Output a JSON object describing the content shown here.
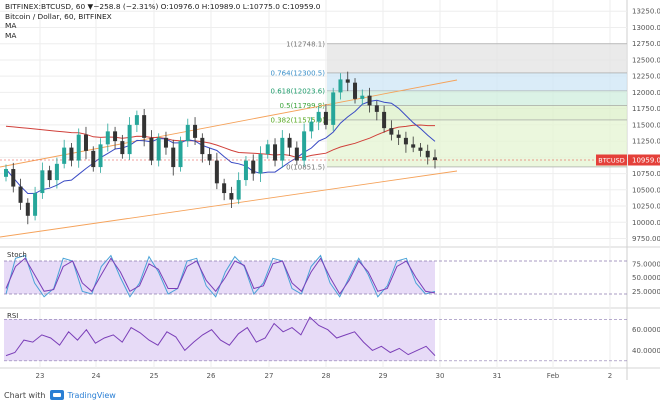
{
  "header": {
    "title": "BITFINEX:BTCUSD, 60",
    "quote": "▼−258.8 (−2.31%) O:10976.0 H:10989.0 L:10775.0 C:10959.0",
    "line2": "Bitcoin / Dollar, 60, BITFINEX",
    "ma1": "MA",
    "ma2": "MA"
  },
  "footer": {
    "prefix": "Chart with",
    "brand": "TradingView",
    "logo_icon": "tradingview-logo-icon"
  },
  "colors": {
    "up": "#26a69a",
    "down": "#333333",
    "ma_fast": "#3a4bc4",
    "ma_slow": "#d0403a",
    "channel": "#f5a25a",
    "badge": "#e4403a",
    "stoch_fill": "#e7dbf7",
    "osc_line": "#7b3fb8",
    "stoch_d": "#4aa3d8"
  },
  "chart_data": [
    {
      "type": "candlestick",
      "title": "Bitcoin / Dollar, 60, BITFINEX",
      "x_ticks": [
        "23",
        "24",
        "25",
        "26",
        "27",
        "28",
        "29",
        "30",
        "31",
        "Feb",
        "2"
      ],
      "y_ticks": [
        9750,
        10000,
        10250,
        10500,
        10750,
        11000,
        11250,
        11500,
        11750,
        12000,
        12250,
        12500,
        12750,
        13000,
        13250
      ],
      "ylim": [
        9650,
        13300
      ],
      "price_badge": {
        "label": "BTCUSD",
        "value": 10959.0
      },
      "close_series": [
        10820,
        10550,
        10300,
        10100,
        10450,
        10800,
        10650,
        10900,
        11150,
        10950,
        11350,
        11100,
        10850,
        11200,
        11400,
        11250,
        11050,
        11500,
        11650,
        11300,
        10950,
        11300,
        11150,
        10850,
        11250,
        11500,
        11300,
        11050,
        10950,
        10600,
        10450,
        10350,
        10650,
        10950,
        10750,
        11050,
        11200,
        10950,
        11300,
        11150,
        10950,
        11400,
        11550,
        11700,
        11500,
        12000,
        12200,
        12150,
        11900,
        11950,
        11800,
        11700,
        11450,
        11350,
        11300,
        11200,
        11150,
        11100,
        11000,
        10959
      ],
      "fibonacci": [
        {
          "label": "1(12748.1)",
          "level": 12748.1
        },
        {
          "label": "0.764(12300.5)",
          "level": 12300.5
        },
        {
          "label": "0.618(12023.6)",
          "level": 12023.6
        },
        {
          "label": "0.5(11799.8)",
          "level": 11799.8
        },
        {
          "label": "0.382(11575.9)",
          "level": 11575.9
        },
        {
          "label": "0(10851.5)",
          "level": 10851.5
        }
      ]
    },
    {
      "type": "line",
      "title": "Stoch",
      "y_ticks": [
        "75.0000",
        "50.0000",
        "25.0000"
      ],
      "ylim": [
        0,
        100
      ],
      "band": [
        20,
        80
      ],
      "k_values": [
        20,
        85,
        90,
        40,
        15,
        30,
        85,
        80,
        25,
        20,
        70,
        90,
        50,
        15,
        40,
        88,
        60,
        20,
        30,
        80,
        85,
        35,
        15,
        60,
        88,
        70,
        20,
        40,
        85,
        80,
        30,
        20,
        70,
        90,
        40,
        15,
        50,
        85,
        55,
        15,
        35,
        80,
        85,
        40,
        20,
        25
      ],
      "d_values": [
        30,
        70,
        85,
        55,
        25,
        28,
        70,
        80,
        40,
        25,
        55,
        85,
        60,
        25,
        35,
        75,
        65,
        30,
        30,
        70,
        80,
        45,
        25,
        50,
        80,
        72,
        30,
        35,
        75,
        80,
        40,
        25,
        60,
        85,
        50,
        20,
        45,
        80,
        60,
        25,
        30,
        70,
        80,
        50,
        25,
        22
      ]
    },
    {
      "type": "line",
      "title": "RSI",
      "y_ticks": [
        "60.0000",
        "40.0000"
      ],
      "ylim": [
        25,
        78
      ],
      "band": [
        30,
        70
      ],
      "values": [
        35,
        38,
        50,
        48,
        55,
        52,
        45,
        58,
        50,
        60,
        47,
        52,
        55,
        48,
        62,
        57,
        50,
        45,
        58,
        53,
        40,
        48,
        55,
        60,
        50,
        45,
        56,
        62,
        48,
        52,
        66,
        58,
        62,
        55,
        72,
        64,
        60,
        52,
        55,
        58,
        48,
        40,
        44,
        38,
        42,
        36,
        40,
        44,
        35
      ]
    }
  ]
}
